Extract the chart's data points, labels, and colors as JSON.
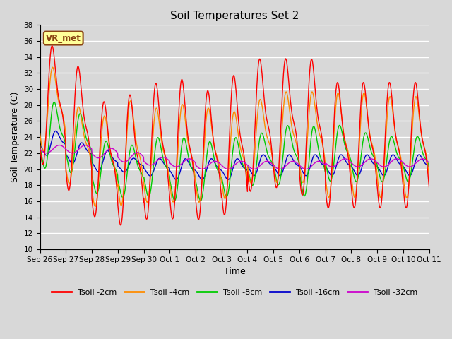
{
  "title": "Soil Temperatures Set 2",
  "xlabel": "Time",
  "ylabel": "Soil Temperature (C)",
  "ylim": [
    10,
    38
  ],
  "yticks": [
    10,
    12,
    14,
    16,
    18,
    20,
    22,
    24,
    26,
    28,
    30,
    32,
    34,
    36,
    38
  ],
  "background_color": "#d8d8d8",
  "plot_bg_color": "#d8d8d8",
  "grid_color": "white",
  "annotation_text": "VR_met",
  "annotation_bg": "#ffff99",
  "annotation_border": "#8b4513",
  "series_colors": {
    "Tsoil -2cm": "#ff0000",
    "Tsoil -4cm": "#ff8c00",
    "Tsoil -8cm": "#00cc00",
    "Tsoil -16cm": "#0000cc",
    "Tsoil -32cm": "#cc00cc"
  },
  "tick_labels": [
    "Sep 26",
    "Sep 27",
    "Sep 28",
    "Sep 29",
    "Sep 30",
    "Oct 1",
    "Oct 2",
    "Oct 3",
    "Oct 4",
    "Oct 5",
    "Oct 6",
    "Oct 7",
    "Oct 8",
    "Oct 9",
    "Oct 10",
    "Oct 11"
  ],
  "num_days": 15,
  "points_per_day": 144
}
